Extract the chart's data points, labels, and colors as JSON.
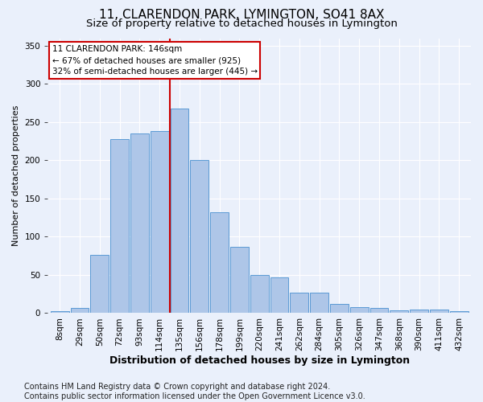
{
  "title": "11, CLARENDON PARK, LYMINGTON, SO41 8AX",
  "subtitle": "Size of property relative to detached houses in Lymington",
  "xlabel": "Distribution of detached houses by size in Lymington",
  "ylabel": "Number of detached properties",
  "categories": [
    "8sqm",
    "29sqm",
    "50sqm",
    "72sqm",
    "93sqm",
    "114sqm",
    "135sqm",
    "156sqm",
    "178sqm",
    "199sqm",
    "220sqm",
    "241sqm",
    "262sqm",
    "284sqm",
    "305sqm",
    "326sqm",
    "347sqm",
    "368sqm",
    "390sqm",
    "411sqm",
    "432sqm"
  ],
  "values": [
    3,
    7,
    76,
    228,
    235,
    238,
    268,
    200,
    132,
    87,
    50,
    47,
    27,
    27,
    12,
    8,
    7,
    4,
    5,
    5,
    3
  ],
  "bar_color": "#aec6e8",
  "bar_edge_color": "#5b9bd5",
  "background_color": "#eaf0fb",
  "grid_color": "#ffffff",
  "annotation_text_line1": "11 CLARENDON PARK: 146sqm",
  "annotation_text_line2": "← 67% of detached houses are smaller (925)",
  "annotation_text_line3": "32% of semi-detached houses are larger (445) →",
  "annotation_box_facecolor": "#ffffff",
  "annotation_box_edgecolor": "#cc0000",
  "vline_color": "#cc0000",
  "vline_x_index": 5.5,
  "footer_line1": "Contains HM Land Registry data © Crown copyright and database right 2024.",
  "footer_line2": "Contains public sector information licensed under the Open Government Licence v3.0.",
  "ylim": [
    0,
    360
  ],
  "yticks": [
    0,
    50,
    100,
    150,
    200,
    250,
    300,
    350
  ],
  "title_fontsize": 11,
  "subtitle_fontsize": 9.5,
  "xlabel_fontsize": 9,
  "ylabel_fontsize": 8,
  "tick_fontsize": 7.5,
  "annot_fontsize": 7.5,
  "footer_fontsize": 7
}
